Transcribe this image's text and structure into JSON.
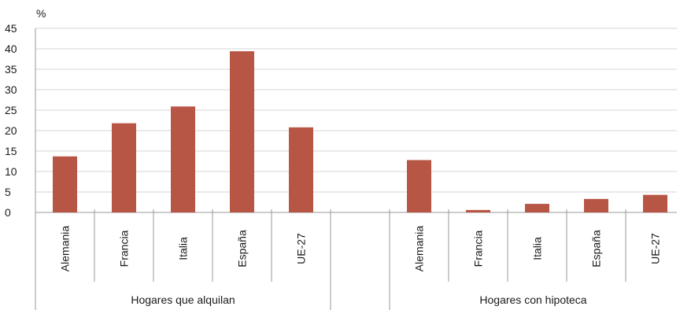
{
  "chart_data": {
    "type": "bar",
    "ylabel": "%",
    "ylim": [
      0,
      45
    ],
    "yticks": [
      0,
      5,
      10,
      15,
      20,
      25,
      30,
      35,
      40,
      45
    ],
    "grid": true,
    "bar_color": "#b85646",
    "groups": [
      {
        "label": "Hogares que alquilan",
        "categories": [
          "Alemania",
          "Francia",
          "Italia",
          "España",
          "UE-27"
        ],
        "values": [
          13.7,
          21.8,
          25.9,
          39.4,
          20.8
        ]
      },
      {
        "label": "Hogares con hipoteca",
        "categories": [
          "Alemania",
          "Francia",
          "Italia",
          "España",
          "UE-27"
        ],
        "values": [
          12.8,
          0.6,
          2.1,
          3.3,
          4.3
        ]
      }
    ]
  }
}
